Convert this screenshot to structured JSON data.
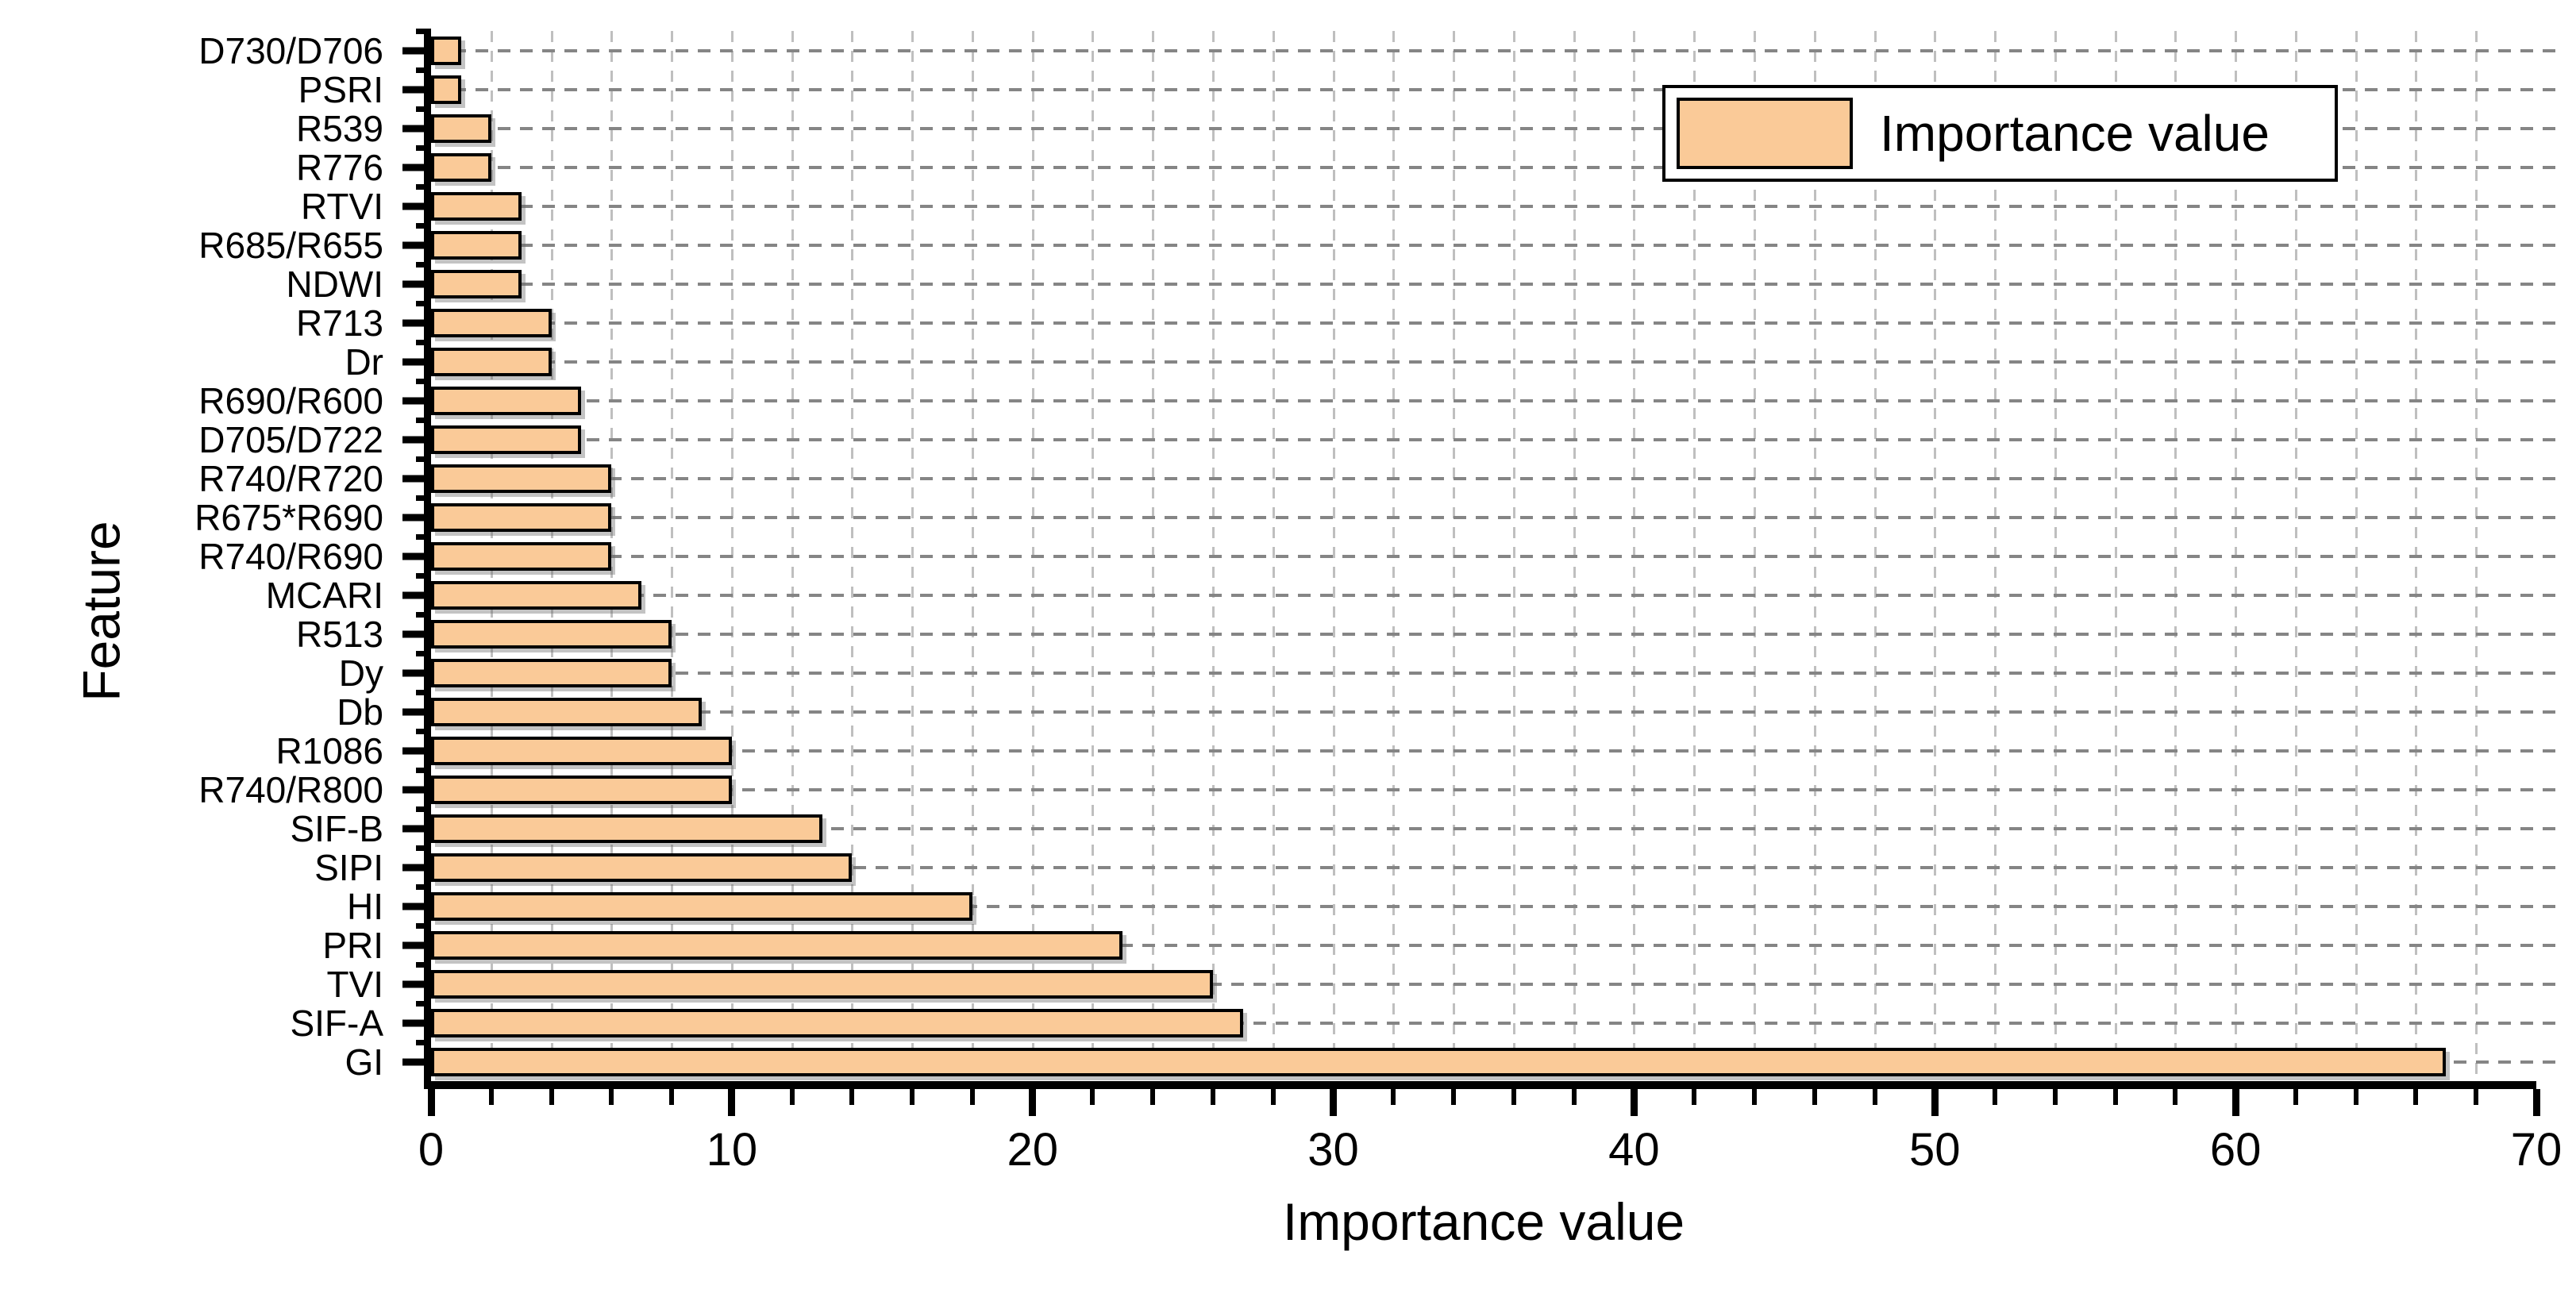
{
  "chart_data": {
    "type": "bar",
    "orientation": "horizontal",
    "categories": [
      "D730/D706",
      "PSRI",
      "R539",
      "R776",
      "RTVI",
      "R685/R655",
      "NDWI",
      "R713",
      "Dr",
      "R690/R600",
      "D705/D722",
      "R740/R720",
      "R675*R690",
      "R740/R690",
      "MCARI",
      "R513",
      "Dy",
      "Db",
      "R1086",
      "R740/R800",
      "SIF-B",
      "SIPI",
      "HI",
      "PRI",
      "TVI",
      "SIF-A",
      "GI"
    ],
    "values": [
      1,
      1,
      2,
      2,
      3,
      3,
      3,
      4,
      4,
      5,
      5,
      6,
      6,
      6,
      7,
      8,
      8,
      9,
      10,
      10,
      13,
      14,
      18,
      23,
      26,
      27,
      67
    ],
    "xlabel": "Importance value",
    "ylabel": "Feature",
    "xlim": [
      0,
      70
    ],
    "xticks_major": [
      0,
      10,
      20,
      30,
      40,
      50,
      60,
      70
    ],
    "xtick_minor_step": 2,
    "grid": {
      "vertical_step": 2,
      "horizontal": "one dashed line per category",
      "style": "dashed"
    },
    "legend": {
      "label": "Importance value",
      "position": "upper right"
    },
    "colors": {
      "bar_fill": "#FACA98",
      "bar_border": "#000000",
      "hgrid": "#858585",
      "vgrid": "#bfbfbf",
      "axis": "#000000"
    }
  }
}
